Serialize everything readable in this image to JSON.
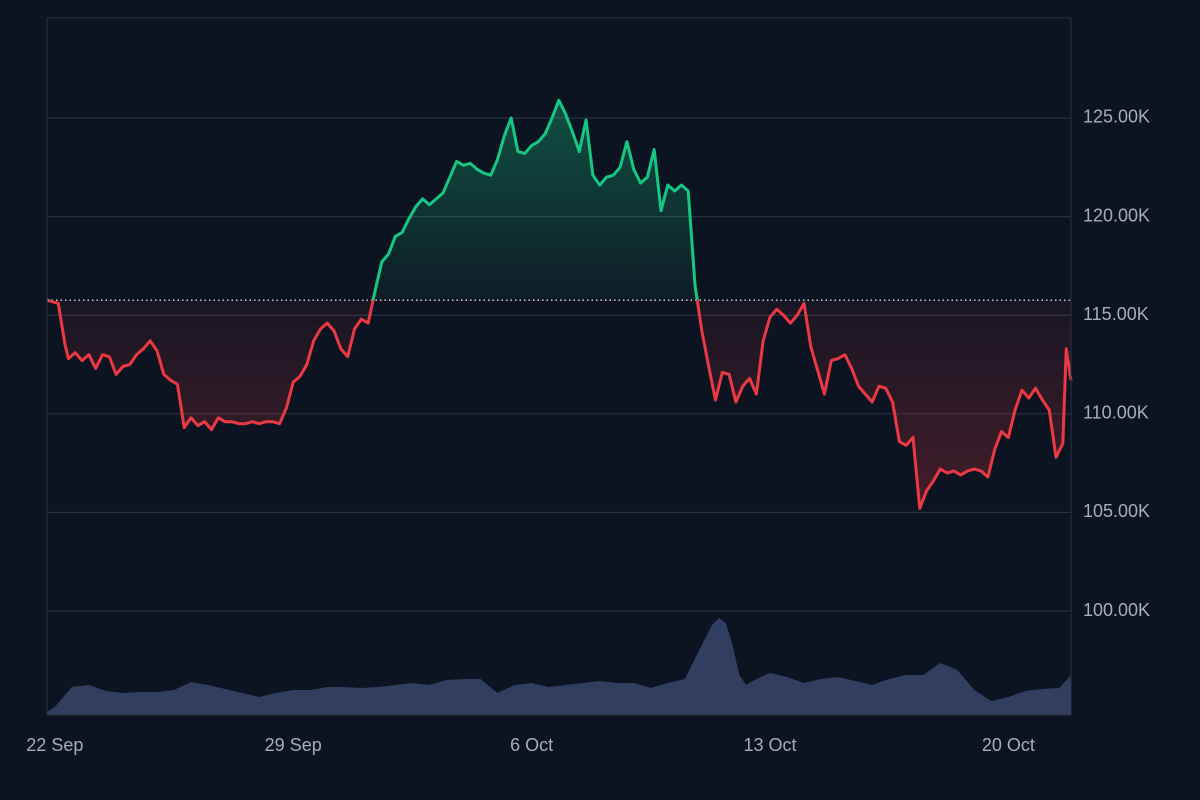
{
  "chart_data": {
    "type": "baseline",
    "baseline": 115.76,
    "up_color": "#16c784",
    "down_color": "#ea3943",
    "volume_color": "#323e60",
    "grid": true,
    "ylim": [
      94.73,
      130.07
    ],
    "yticks": [
      {
        "value": 100,
        "label": "100.00K"
      },
      {
        "value": 105,
        "label": "105.00K"
      },
      {
        "value": 110,
        "label": "110.00K"
      },
      {
        "value": 115,
        "label": "115.00K"
      },
      {
        "value": 120,
        "label": "120.00K"
      },
      {
        "value": 125,
        "label": "125.00K"
      }
    ],
    "xlim": [
      -0.23,
      29.84
    ],
    "xticks": [
      {
        "value": 0,
        "label": "22 Sep"
      },
      {
        "value": 7,
        "label": "29 Sep"
      },
      {
        "value": 14,
        "label": "6 Oct"
      },
      {
        "value": 21,
        "label": "13 Oct"
      },
      {
        "value": 28,
        "label": "20 Oct"
      }
    ],
    "x": [
      -0.23,
      0.1,
      0.3,
      0.4,
      0.6,
      0.8,
      1.0,
      1.2,
      1.4,
      1.6,
      1.8,
      2.0,
      2.2,
      2.4,
      2.6,
      2.8,
      3.0,
      3.2,
      3.4,
      3.6,
      3.8,
      4.0,
      4.2,
      4.4,
      4.6,
      4.8,
      5.0,
      5.2,
      5.4,
      5.6,
      5.8,
      6.0,
      6.2,
      6.4,
      6.6,
      6.8,
      7.0,
      7.2,
      7.4,
      7.6,
      7.8,
      8.0,
      8.2,
      8.4,
      8.6,
      8.8,
      9.0,
      9.2,
      9.4,
      9.6,
      9.8,
      10.0,
      10.2,
      10.4,
      10.6,
      10.8,
      11.0,
      11.2,
      11.4,
      11.6,
      11.8,
      12.0,
      12.2,
      12.4,
      12.6,
      12.8,
      13.0,
      13.2,
      13.4,
      13.6,
      13.8,
      14.0,
      14.2,
      14.4,
      14.6,
      14.8,
      15.0,
      15.2,
      15.4,
      15.6,
      15.8,
      16.0,
      16.2,
      16.4,
      16.6,
      16.8,
      17.0,
      17.2,
      17.4,
      17.6,
      17.8,
      18.0,
      18.2,
      18.4,
      18.6,
      18.8,
      19.0,
      19.2,
      19.4,
      19.6,
      19.8,
      20.0,
      20.2,
      20.4,
      20.6,
      20.8,
      21.0,
      21.2,
      21.4,
      21.6,
      21.8,
      22.0,
      22.2,
      22.4,
      22.6,
      22.8,
      23.0,
      23.2,
      23.4,
      23.6,
      23.8,
      24.0,
      24.2,
      24.4,
      24.6,
      24.8,
      25.0,
      25.2,
      25.4,
      25.6,
      25.8,
      26.0,
      26.2,
      26.4,
      26.6,
      26.8,
      27.0,
      27.2,
      27.4,
      27.6,
      27.8,
      28.0,
      28.2,
      28.4,
      28.6,
      28.8,
      29.0,
      29.2,
      29.4,
      29.6,
      29.7,
      29.84
    ],
    "values": [
      115.76,
      115.6,
      113.5,
      112.8,
      113.1,
      112.7,
      113.0,
      112.3,
      113.0,
      112.9,
      112.0,
      112.4,
      112.5,
      113.0,
      113.3,
      113.7,
      113.2,
      112.0,
      111.7,
      111.5,
      109.3,
      109.8,
      109.4,
      109.6,
      109.2,
      109.8,
      109.6,
      109.6,
      109.5,
      109.5,
      109.6,
      109.5,
      109.6,
      109.6,
      109.5,
      110.3,
      111.6,
      111.9,
      112.5,
      113.7,
      114.3,
      114.6,
      114.2,
      113.3,
      112.9,
      114.3,
      114.8,
      114.6,
      116.2,
      117.7,
      118.1,
      119.0,
      119.2,
      119.9,
      120.5,
      120.9,
      120.6,
      120.9,
      121.2,
      122.0,
      122.8,
      122.6,
      122.7,
      122.4,
      122.2,
      122.1,
      122.9,
      124.1,
      125.0,
      123.3,
      123.2,
      123.6,
      123.8,
      124.2,
      125.0,
      125.9,
      125.2,
      124.3,
      123.3,
      124.9,
      122.1,
      121.6,
      122.0,
      122.1,
      122.5,
      123.8,
      122.4,
      121.7,
      122.0,
      123.4,
      120.3,
      121.6,
      121.3,
      121.6,
      121.3,
      116.5,
      114.2,
      112.4,
      110.7,
      112.1,
      112.0,
      110.6,
      111.4,
      111.8,
      111.0,
      113.7,
      114.9,
      115.3,
      115.0,
      114.6,
      115.0,
      115.6,
      113.4,
      112.2,
      111.0,
      112.7,
      112.8,
      113.0,
      112.3,
      111.4,
      111.0,
      110.6,
      111.4,
      111.3,
      110.6,
      108.6,
      108.4,
      108.8,
      105.2,
      106.1,
      106.6,
      107.2,
      107.0,
      107.1,
      106.9,
      107.1,
      107.2,
      107.1,
      106.8,
      108.2,
      109.1,
      108.8,
      110.2,
      111.2,
      110.8,
      111.3,
      110.7,
      110.2,
      107.8,
      108.5,
      113.3,
      111.7
    ],
    "volume": {
      "vlim": [
        0,
        100
      ],
      "x": [
        -0.23,
        0,
        0.5,
        1,
        1.5,
        2,
        2.5,
        3,
        3.5,
        4,
        4.5,
        5,
        5.5,
        6,
        6.5,
        7,
        7.5,
        8,
        8.5,
        9,
        9.5,
        10,
        10.5,
        11,
        11.5,
        12,
        12.5,
        13,
        13.5,
        14,
        14.5,
        15,
        15.5,
        16,
        16.5,
        17,
        17.5,
        18,
        18.5,
        19,
        19.3,
        19.5,
        19.7,
        19.9,
        20.1,
        20.3,
        20.6,
        21,
        21.5,
        22,
        22.5,
        23,
        23.5,
        24,
        24.5,
        25,
        25.5,
        26,
        26.5,
        27,
        27.5,
        28,
        28.5,
        29,
        29.5,
        29.84
      ],
      "values": [
        3,
        8,
        28,
        30,
        24,
        22,
        23,
        23,
        25,
        33,
        30,
        26,
        22,
        18,
        22,
        25,
        25,
        28,
        28,
        27,
        28,
        30,
        32,
        30,
        35,
        36,
        36,
        22,
        30,
        32,
        28,
        30,
        32,
        34,
        32,
        32,
        27,
        32,
        36,
        70,
        90,
        97,
        92,
        70,
        40,
        30,
        36,
        42,
        38,
        32,
        36,
        38,
        34,
        30,
        36,
        40,
        40,
        52,
        45,
        25,
        14,
        18,
        24,
        26,
        27,
        40
      ]
    }
  }
}
